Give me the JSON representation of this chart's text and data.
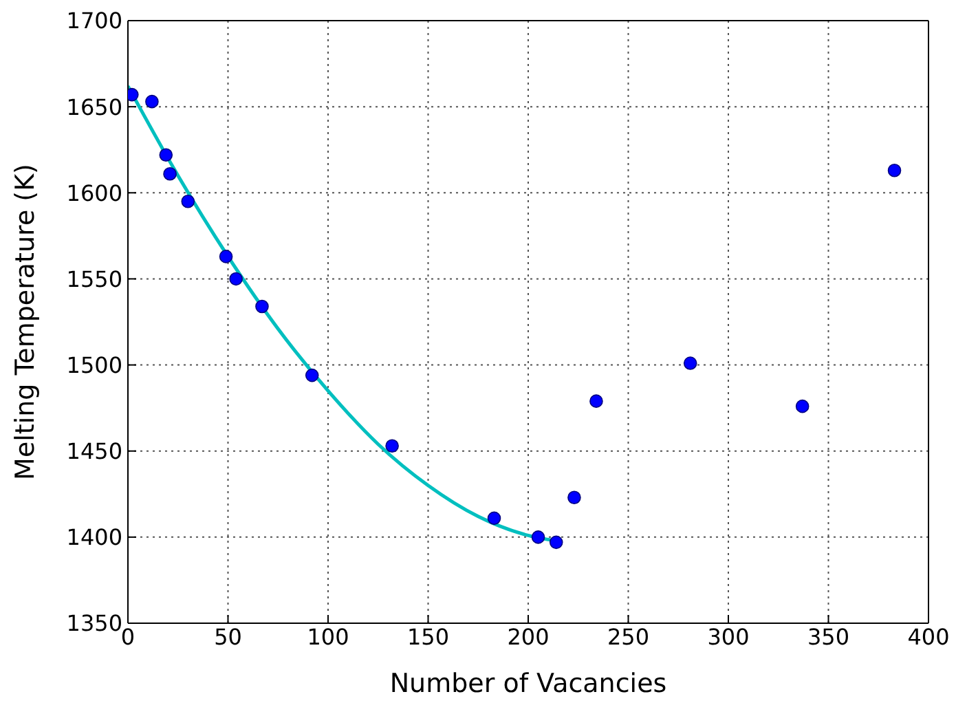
{
  "chart_data": {
    "type": "scatter",
    "xlabel": "Number of Vacancies",
    "ylabel": "Melting Temperature (K)",
    "xlim": [
      0,
      400
    ],
    "xticks": [
      0,
      50,
      100,
      150,
      200,
      250,
      300,
      350,
      400
    ],
    "ylim": [
      1350,
      1700
    ],
    "yticks": [
      1350,
      1400,
      1450,
      1500,
      1550,
      1600,
      1650,
      1700
    ],
    "grid": true,
    "series": [
      {
        "marker": "circle",
        "color": "#0000ff",
        "x": [
          2,
          12,
          19,
          21,
          30,
          49,
          54,
          67,
          92,
          132,
          183,
          205,
          214,
          223,
          234,
          281,
          337,
          383
        ],
        "values": [
          1657,
          1653,
          1622,
          1611,
          1595,
          1563,
          1550,
          1534,
          1494,
          1453,
          1411,
          1400,
          1397,
          1423,
          1479,
          1501,
          1476,
          1613
        ]
      },
      {
        "type": "line",
        "color": "#00bfbf",
        "x": [
          0,
          25,
          50,
          75,
          100,
          125,
          150,
          175,
          200,
          213
        ],
        "values": [
          1662,
          1610,
          1563,
          1521,
          1485,
          1454,
          1430,
          1412,
          1401,
          1398
        ]
      }
    ]
  }
}
